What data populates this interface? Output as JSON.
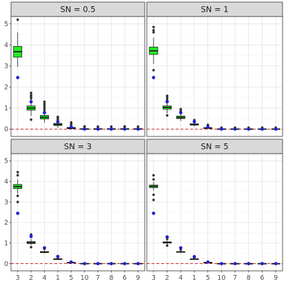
{
  "chart_data": {
    "type": "boxplot",
    "layout": "2x2 facet grid",
    "categories": [
      "3",
      "2",
      "4",
      "1",
      "5",
      "10",
      "7",
      "8",
      "6",
      "9"
    ],
    "yticks": [
      0,
      1,
      2,
      3,
      4,
      5
    ],
    "ylim": [
      -0.35,
      5.35
    ],
    "grid": true,
    "reference_line": {
      "y": 0,
      "style": "dashed",
      "color": "#d62728"
    },
    "colors": {
      "box_fill": "#22ee22",
      "box_stroke": "#1a1a1a",
      "marker": "#1f1fdd",
      "outlier": "#333333",
      "strip": "#d9d9d9"
    },
    "panels": [
      {
        "strip": "SN =  0.5",
        "boxes": [
          {
            "q1": 3.42,
            "median": 3.68,
            "q3": 3.93,
            "wmin": 2.95,
            "wmax": 4.6,
            "outliers": [
              5.2
            ],
            "marker": 2.45
          },
          {
            "q1": 0.9,
            "median": 1.0,
            "q3": 1.1,
            "wmin": 0.62,
            "wmax": 1.35,
            "outliers": [
              0.45,
              1.45,
              1.55,
              1.62,
              1.72
            ],
            "marker": 1.3
          },
          {
            "q1": 0.48,
            "median": 0.56,
            "q3": 0.65,
            "wmin": 0.3,
            "wmax": 0.85,
            "outliers": [
              0.9,
              1.0,
              1.1,
              1.2,
              1.3
            ],
            "marker": 0.78
          },
          {
            "q1": 0.17,
            "median": 0.22,
            "q3": 0.27,
            "wmin": 0.05,
            "wmax": 0.38,
            "outliers": [
              0.45,
              0.52,
              0.58
            ],
            "marker": 0.35
          },
          {
            "q1": 0.02,
            "median": 0.05,
            "q3": 0.08,
            "wmin": -0.02,
            "wmax": 0.14,
            "outliers": [
              0.2,
              0.26,
              0.32
            ],
            "marker": 0.1
          },
          {
            "q1": -0.01,
            "median": 0.0,
            "q3": 0.02,
            "wmin": -0.05,
            "wmax": 0.06,
            "outliers": [
              0.1,
              0.13
            ],
            "marker": 0.0
          },
          {
            "q1": -0.01,
            "median": 0.0,
            "q3": 0.02,
            "wmin": -0.05,
            "wmax": 0.06,
            "outliers": [
              0.1,
              0.12
            ],
            "marker": 0.0
          },
          {
            "q1": -0.01,
            "median": 0.0,
            "q3": 0.02,
            "wmin": -0.05,
            "wmax": 0.06,
            "outliers": [
              0.1,
              0.12
            ],
            "marker": 0.0
          },
          {
            "q1": -0.01,
            "median": 0.0,
            "q3": 0.02,
            "wmin": -0.05,
            "wmax": 0.06,
            "outliers": [
              0.1,
              0.13
            ],
            "marker": 0.0
          },
          {
            "q1": -0.01,
            "median": 0.0,
            "q3": 0.02,
            "wmin": -0.05,
            "wmax": 0.06,
            "outliers": [
              0.1,
              0.12
            ],
            "marker": 0.0
          }
        ]
      },
      {
        "strip": "SN =  1",
        "boxes": [
          {
            "q1": 3.55,
            "median": 3.72,
            "q3": 3.9,
            "wmin": 3.1,
            "wmax": 4.35,
            "outliers": [
              2.8,
              4.6,
              4.7,
              4.85
            ],
            "marker": 2.45
          },
          {
            "q1": 0.95,
            "median": 1.03,
            "q3": 1.1,
            "wmin": 0.75,
            "wmax": 1.3,
            "outliers": [
              0.65,
              1.4,
              1.5,
              1.58
            ],
            "marker": 1.3
          },
          {
            "q1": 0.5,
            "median": 0.55,
            "q3": 0.62,
            "wmin": 0.38,
            "wmax": 0.75,
            "outliers": [
              0.8,
              0.88,
              0.95
            ],
            "marker": 0.78
          },
          {
            "q1": 0.19,
            "median": 0.22,
            "q3": 0.25,
            "wmin": 0.12,
            "wmax": 0.33,
            "outliers": [
              0.38,
              0.43
            ],
            "marker": 0.35
          },
          {
            "q1": 0.03,
            "median": 0.05,
            "q3": 0.07,
            "wmin": 0.0,
            "wmax": 0.1,
            "outliers": [
              0.15,
              0.2
            ],
            "marker": 0.1
          },
          {
            "q1": -0.01,
            "median": 0.0,
            "q3": 0.01,
            "wmin": -0.03,
            "wmax": 0.04,
            "outliers": [
              0.07
            ],
            "marker": 0.0
          },
          {
            "q1": -0.01,
            "median": 0.0,
            "q3": 0.01,
            "wmin": -0.03,
            "wmax": 0.04,
            "outliers": [
              0.07
            ],
            "marker": 0.0
          },
          {
            "q1": -0.01,
            "median": 0.0,
            "q3": 0.01,
            "wmin": -0.03,
            "wmax": 0.04,
            "outliers": [
              0.07
            ],
            "marker": 0.0
          },
          {
            "q1": -0.01,
            "median": 0.0,
            "q3": 0.01,
            "wmin": -0.03,
            "wmax": 0.04,
            "outliers": [
              0.07
            ],
            "marker": 0.0
          },
          {
            "q1": -0.01,
            "median": 0.0,
            "q3": 0.01,
            "wmin": -0.03,
            "wmax": 0.04,
            "outliers": [
              0.07
            ],
            "marker": 0.0
          }
        ]
      },
      {
        "strip": "SN =  3",
        "boxes": [
          {
            "q1": 3.65,
            "median": 3.75,
            "q3": 3.85,
            "wmin": 3.4,
            "wmax": 4.1,
            "outliers": [
              3.0,
              3.3,
              4.3,
              4.45
            ],
            "marker": 2.45
          },
          {
            "q1": 0.98,
            "median": 1.02,
            "q3": 1.07,
            "wmin": 0.9,
            "wmax": 1.2,
            "outliers": [
              0.8,
              1.3,
              1.42
            ],
            "marker": 1.33
          },
          {
            "q1": 0.54,
            "median": 0.56,
            "q3": 0.59,
            "wmin": 0.5,
            "wmax": 0.64,
            "outliers": [
              0.72
            ],
            "marker": 0.77
          },
          {
            "q1": 0.2,
            "median": 0.22,
            "q3": 0.24,
            "wmin": 0.17,
            "wmax": 0.28,
            "outliers": [
              0.3
            ],
            "marker": 0.35
          },
          {
            "q1": 0.04,
            "median": 0.05,
            "q3": 0.06,
            "wmin": 0.02,
            "wmax": 0.08,
            "outliers": [],
            "marker": 0.08
          },
          {
            "q1": 0.0,
            "median": 0.0,
            "q3": 0.01,
            "wmin": -0.01,
            "wmax": 0.02,
            "outliers": [],
            "marker": 0.0
          },
          {
            "q1": 0.0,
            "median": 0.0,
            "q3": 0.01,
            "wmin": -0.01,
            "wmax": 0.02,
            "outliers": [],
            "marker": 0.0
          },
          {
            "q1": 0.0,
            "median": 0.0,
            "q3": 0.01,
            "wmin": -0.01,
            "wmax": 0.02,
            "outliers": [],
            "marker": 0.0
          },
          {
            "q1": 0.0,
            "median": 0.0,
            "q3": 0.01,
            "wmin": -0.01,
            "wmax": 0.02,
            "outliers": [],
            "marker": 0.0
          },
          {
            "q1": 0.0,
            "median": 0.0,
            "q3": 0.01,
            "wmin": -0.01,
            "wmax": 0.02,
            "outliers": [],
            "marker": 0.0
          }
        ]
      },
      {
        "strip": "SN =  5",
        "boxes": [
          {
            "q1": 3.7,
            "median": 3.76,
            "q3": 3.82,
            "wmin": 3.55,
            "wmax": 3.98,
            "outliers": [
              3.1,
              3.35,
              4.1,
              4.3
            ],
            "marker": 2.45
          },
          {
            "q1": 1.0,
            "median": 1.03,
            "q3": 1.06,
            "wmin": 0.95,
            "wmax": 1.12,
            "outliers": [
              0.88,
              1.2,
              1.28
            ],
            "marker": 1.3
          },
          {
            "q1": 0.55,
            "median": 0.57,
            "q3": 0.59,
            "wmin": 0.52,
            "wmax": 0.62,
            "outliers": [
              0.68
            ],
            "marker": 0.77
          },
          {
            "q1": 0.21,
            "median": 0.22,
            "q3": 0.23,
            "wmin": 0.19,
            "wmax": 0.25,
            "outliers": [
              0.28
            ],
            "marker": 0.34
          },
          {
            "q1": 0.04,
            "median": 0.05,
            "q3": 0.06,
            "wmin": 0.03,
            "wmax": 0.07,
            "outliers": [],
            "marker": 0.08
          },
          {
            "q1": 0.0,
            "median": 0.0,
            "q3": 0.005,
            "wmin": -0.01,
            "wmax": 0.015,
            "outliers": [],
            "marker": 0.0
          },
          {
            "q1": 0.0,
            "median": 0.0,
            "q3": 0.005,
            "wmin": -0.01,
            "wmax": 0.015,
            "outliers": [],
            "marker": 0.0
          },
          {
            "q1": 0.0,
            "median": 0.0,
            "q3": 0.005,
            "wmin": -0.01,
            "wmax": 0.015,
            "outliers": [],
            "marker": 0.0
          },
          {
            "q1": 0.0,
            "median": 0.0,
            "q3": 0.005,
            "wmin": -0.01,
            "wmax": 0.015,
            "outliers": [],
            "marker": 0.0
          },
          {
            "q1": 0.0,
            "median": 0.0,
            "q3": 0.005,
            "wmin": -0.01,
            "wmax": 0.015,
            "outliers": [],
            "marker": 0.0
          }
        ]
      }
    ]
  }
}
